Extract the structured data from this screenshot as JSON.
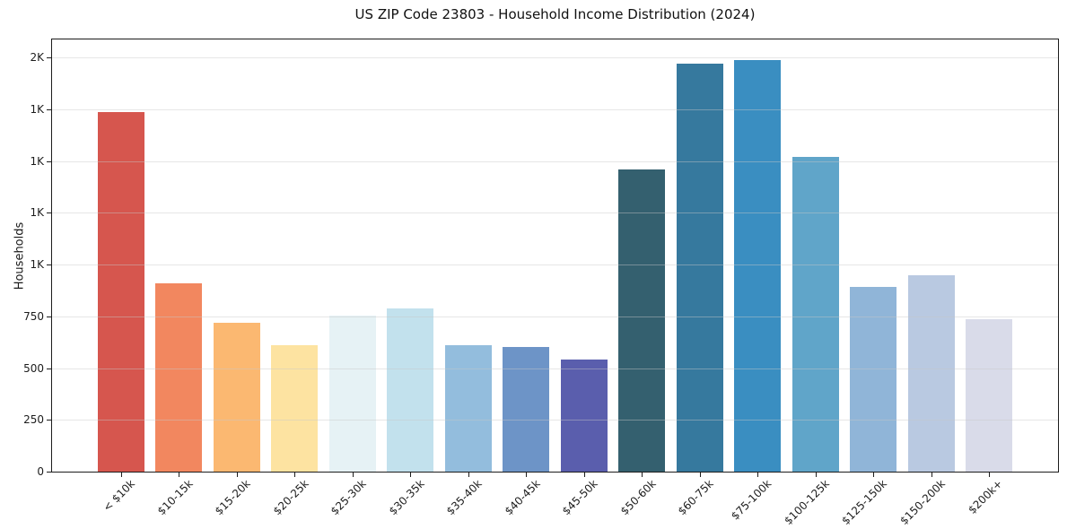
{
  "chart_data": {
    "type": "bar",
    "title": "US ZIP Code 23803 - Household Income Distribution (2024)",
    "xlabel": "",
    "ylabel": "Households",
    "ylim": [
      0,
      2000
    ],
    "grid": true,
    "legend": "none",
    "categories": [
      "< $10k",
      "$10-15k",
      "$15-20k",
      "$20-25k",
      "$25-30k",
      "$30-35k",
      "$35-40k",
      "$40-45k",
      "$45-50k",
      "$50-60k",
      "$60-75k",
      "$75-100k",
      "$100-125k",
      "$125-150k",
      "$150-200k",
      "$200k+"
    ],
    "values": [
      1735,
      910,
      720,
      610,
      755,
      790,
      610,
      600,
      540,
      1460,
      1970,
      1985,
      1520,
      890,
      950,
      735
    ],
    "bar_colors": [
      "#d6564e",
      "#f2875f",
      "#fbb871",
      "#fde3a1",
      "#e6f2f5",
      "#c2e1ed",
      "#93bddd",
      "#6d94c7",
      "#5a5ead",
      "#34606f",
      "#36799e",
      "#3a8ec1",
      "#60a5c9",
      "#90b5d8",
      "#b9c9e1",
      "#d9dbe9"
    ],
    "y_ticks": [
      {
        "value": 0,
        "label": "0"
      },
      {
        "value": 250,
        "label": "250"
      },
      {
        "value": 500,
        "label": "500"
      },
      {
        "value": 750,
        "label": "750"
      },
      {
        "value": 1000,
        "label": "1K"
      },
      {
        "value": 1250,
        "label": "1K"
      },
      {
        "value": 1500,
        "label": "1K"
      },
      {
        "value": 1750,
        "label": "1K"
      },
      {
        "value": 2000,
        "label": "2K"
      }
    ]
  },
  "style": {
    "background": "#ffffff",
    "spine_color": "#1c1c1c",
    "grid_color": "rgba(200,200,200,0.45)",
    "tick_color": "#1c1c1c",
    "title_color": "#111111"
  }
}
